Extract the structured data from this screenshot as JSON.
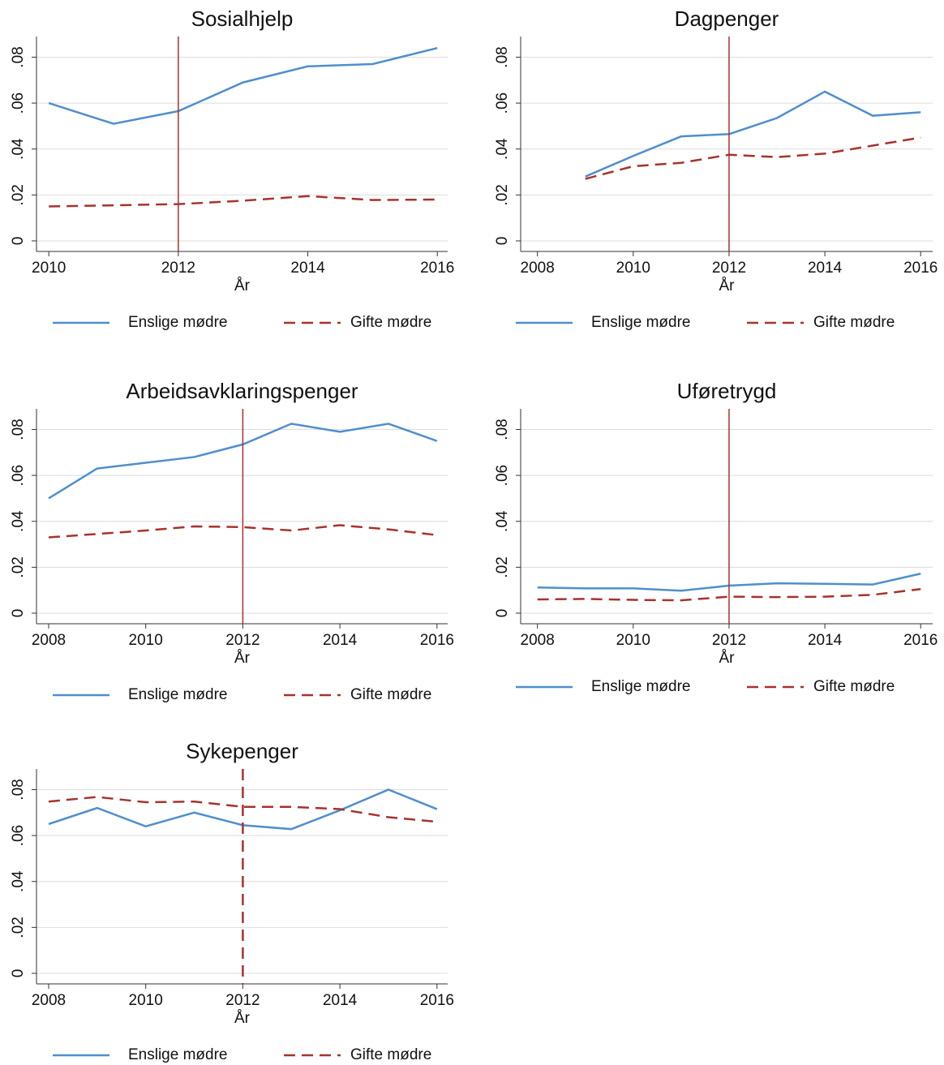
{
  "chart_data": [
    {
      "type": "line",
      "title": "Sosialhjelp",
      "xlabel": "År",
      "x": [
        2010,
        2011,
        2012,
        2013,
        2014,
        2015,
        2016
      ],
      "series": [
        {
          "name": "Enslige mødre",
          "color": "#4f8fcc",
          "dashed": false,
          "values": [
            0.06,
            0.051,
            0.0565,
            0.069,
            0.076,
            0.077,
            0.084
          ]
        },
        {
          "name": "Gifte mødre",
          "color": "#a8322d",
          "dashed": true,
          "values": [
            0.015,
            0.0155,
            0.016,
            0.0175,
            0.0195,
            0.0178,
            0.018
          ]
        }
      ],
      "xlim": [
        2009.81,
        2016.16
      ],
      "xticks": [
        2010,
        2012,
        2014,
        2016
      ],
      "ylim": [
        -0.0046,
        0.089
      ],
      "yticks": [
        0,
        {
          "value": 0.02,
          "label": ".02"
        },
        {
          "value": 0.04,
          "label": ".04"
        },
        {
          "value": 0.06,
          "label": ".06"
        },
        {
          "value": 0.08,
          "label": ".08"
        }
      ],
      "grid": true,
      "legend": "bottom",
      "vline": 2012,
      "vline_color": "#a8322d",
      "vline_dashed": false
    },
    {
      "type": "line",
      "title": "Dagpenger",
      "xlabel": "År",
      "x": [
        2009,
        2010,
        2011,
        2012,
        2013,
        2014,
        2015,
        2016
      ],
      "series": [
        {
          "name": "Enslige mødre",
          "color": "#4f8fcc",
          "dashed": false,
          "values": [
            0.028,
            0.037,
            0.0455,
            0.0465,
            0.0535,
            0.065,
            0.0545,
            0.056
          ]
        },
        {
          "name": "Gifte mødre",
          "color": "#a8322d",
          "dashed": true,
          "values": [
            0.027,
            0.0325,
            0.034,
            0.0375,
            0.0365,
            0.038,
            0.0415,
            0.045
          ]
        }
      ],
      "xlim": [
        2007.65,
        2016.25
      ],
      "xticks": [
        2008,
        2010,
        2012,
        2014,
        2016
      ],
      "ylim": [
        -0.0046,
        0.089
      ],
      "yticks": [
        0,
        {
          "value": 0.02,
          "label": ".02"
        },
        {
          "value": 0.04,
          "label": ".04"
        },
        {
          "value": 0.06,
          "label": ".06"
        },
        {
          "value": 0.08,
          "label": ".08"
        }
      ],
      "grid": true,
      "legend": "bottom",
      "vline": 2012,
      "vline_color": "#a8322d",
      "vline_dashed": false
    },
    {
      "type": "line",
      "title": "Arbeidsavklaringspenger",
      "xlabel": "År",
      "x": [
        2008,
        2009,
        2010,
        2011,
        2012,
        2013,
        2014,
        2015,
        2016
      ],
      "series": [
        {
          "name": "Enslige mødre",
          "color": "#4f8fcc",
          "dashed": false,
          "values": [
            0.05,
            0.063,
            0.0655,
            0.068,
            0.0735,
            0.0825,
            0.079,
            0.0825,
            0.075
          ]
        },
        {
          "name": "Gifte mødre",
          "color": "#a8322d",
          "dashed": true,
          "values": [
            0.033,
            0.0345,
            0.036,
            0.0378,
            0.0375,
            0.036,
            0.0383,
            0.0365,
            0.034
          ]
        }
      ],
      "xlim": [
        2007.75,
        2016.22
      ],
      "xticks": [
        2008,
        2010,
        2012,
        2014,
        2016
      ],
      "ylim": [
        -0.0046,
        0.089
      ],
      "yticks": [
        0,
        {
          "value": 0.02,
          "label": ".02"
        },
        {
          "value": 0.04,
          "label": ".04"
        },
        {
          "value": 0.06,
          "label": ".06"
        },
        {
          "value": 0.08,
          "label": ".08"
        }
      ],
      "grid": true,
      "legend": "bottom",
      "vline": 2012,
      "vline_color": "#a8322d",
      "vline_dashed": false
    },
    {
      "type": "line",
      "title": "Uføretrygd",
      "xlabel": "År",
      "x": [
        2008,
        2009,
        2010,
        2011,
        2012,
        2013,
        2014,
        2015,
        2016
      ],
      "series": [
        {
          "name": "Enslige mødre",
          "color": "#4f8fcc",
          "dashed": false,
          "values": [
            0.0112,
            0.0108,
            0.0108,
            0.0098,
            0.012,
            0.013,
            0.0128,
            0.0125,
            0.0172
          ]
        },
        {
          "name": "Gifte mødre",
          "color": "#a8322d",
          "dashed": true,
          "values": [
            0.006,
            0.0062,
            0.0058,
            0.0056,
            0.0072,
            0.007,
            0.0072,
            0.008,
            0.0105
          ]
        }
      ],
      "xlim": [
        2007.65,
        2016.25
      ],
      "xticks": [
        2008,
        2010,
        2012,
        2014,
        2016
      ],
      "ylim": [
        -0.0046,
        0.089
      ],
      "yticks": [
        0,
        {
          "value": 0.02,
          "label": ".02"
        },
        {
          "value": 0.04,
          "label": ".04"
        },
        {
          "value": 0.06,
          "label": ".06"
        },
        {
          "value": 0.08,
          "label": ".08"
        }
      ],
      "grid": true,
      "legend": "bottom",
      "vline": 2012,
      "vline_color": "#a8322d",
      "vline_dashed": false
    },
    {
      "type": "line",
      "title": "Sykepenger",
      "xlabel": "År",
      "x": [
        2008,
        2009,
        2010,
        2011,
        2012,
        2013,
        2014,
        2015,
        2016
      ],
      "series": [
        {
          "name": "Enslige mødre",
          "color": "#4f8fcc",
          "dashed": false,
          "values": [
            0.065,
            0.072,
            0.064,
            0.07,
            0.0645,
            0.0628,
            0.071,
            0.08,
            0.0715
          ]
        },
        {
          "name": "Gifte mødre",
          "color": "#a8322d",
          "dashed": true,
          "values": [
            0.0748,
            0.0768,
            0.0745,
            0.0748,
            0.0725,
            0.0725,
            0.0715,
            0.068,
            0.066
          ]
        }
      ],
      "xlim": [
        2007.75,
        2016.22
      ],
      "xticks": [
        2008,
        2010,
        2012,
        2014,
        2016
      ],
      "ylim": [
        -0.0046,
        0.089
      ],
      "yticks": [
        0,
        {
          "value": 0.02,
          "label": ".02"
        },
        {
          "value": 0.04,
          "label": ".04"
        },
        {
          "value": 0.06,
          "label": ".06"
        },
        {
          "value": 0.08,
          "label": ".08"
        }
      ],
      "grid": true,
      "legend": "bottom",
      "vline": 2012,
      "vline_color": "#a8322d",
      "vline_dashed": true
    }
  ]
}
